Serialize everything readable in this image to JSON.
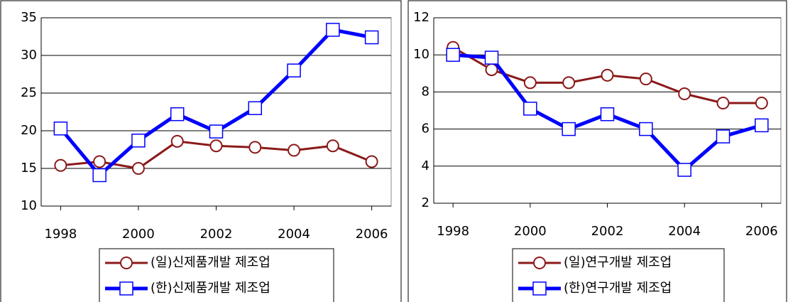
{
  "chart_data": [
    {
      "type": "line",
      "x": [
        1998,
        1999,
        2000,
        2001,
        2002,
        2003,
        2004,
        2005,
        2006
      ],
      "xlim": [
        1997.5,
        2006.5
      ],
      "xticks": [
        1998,
        2000,
        2002,
        2004,
        2006
      ],
      "ylim": [
        10,
        35
      ],
      "yticks": [
        10,
        15,
        20,
        25,
        30,
        35
      ],
      "grid": true,
      "series": [
        {
          "name": "(일)신제품개발 제조업",
          "color": "#8b1a1a",
          "marker": "circle",
          "values": [
            15.4,
            15.9,
            15.0,
            18.6,
            18.0,
            17.8,
            17.4,
            18.0,
            15.9
          ]
        },
        {
          "name": "(한)신제품개발 제조업",
          "color": "#0000ff",
          "marker": "square",
          "values": [
            20.3,
            14.1,
            18.7,
            22.2,
            19.9,
            23.0,
            28.0,
            33.4,
            32.4
          ]
        }
      ]
    },
    {
      "type": "line",
      "x": [
        1998,
        1999,
        2000,
        2001,
        2002,
        2003,
        2004,
        2005,
        2006
      ],
      "xlim": [
        1997.5,
        2006.5
      ],
      "xticks": [
        1998,
        2000,
        2002,
        2004,
        2006
      ],
      "ylim": [
        2,
        12
      ],
      "yticks": [
        2,
        4,
        6,
        8,
        10,
        12
      ],
      "grid": true,
      "series": [
        {
          "name": "(일)연구개발 제조업",
          "color": "#8b1a1a",
          "marker": "circle",
          "values": [
            10.4,
            9.2,
            8.5,
            8.5,
            8.9,
            8.7,
            7.9,
            7.4,
            7.4
          ]
        },
        {
          "name": "(한)연구개발 제조업",
          "color": "#0000ff",
          "marker": "square",
          "values": [
            10.0,
            9.85,
            7.1,
            6.0,
            6.8,
            6.0,
            3.8,
            5.6,
            6.2
          ]
        }
      ]
    }
  ]
}
